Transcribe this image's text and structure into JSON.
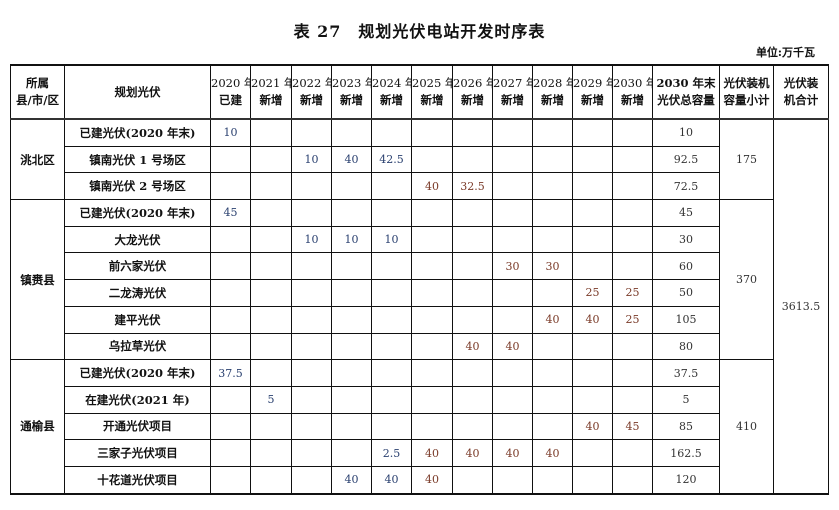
{
  "title": "表 27　规划光伏电站开发时序表",
  "unit": "单位:万千瓦",
  "headers": {
    "county": "所属\n县/市/区",
    "project": "规划光伏",
    "years": [
      [
        "2020 年",
        "已建"
      ],
      [
        "2021 年",
        "新增"
      ],
      [
        "2022 年",
        "新增"
      ],
      [
        "2023 年",
        "新增"
      ],
      [
        "2024 年",
        "新增"
      ],
      [
        "2025 年",
        "新增"
      ],
      [
        "2026 年",
        "新增"
      ],
      [
        "2027 年",
        "新增"
      ],
      [
        "2028 年",
        "新增"
      ],
      [
        "2029 年",
        "新增"
      ],
      [
        "2030 年",
        "新增"
      ]
    ],
    "total": [
      "2030 年末",
      "光伏总容量"
    ],
    "subtotal": [
      "光伏装机",
      "容量小计"
    ],
    "grand": [
      "光伏装",
      "机合计"
    ]
  },
  "colors": {
    "early": "#2b4170",
    "late": "#7a3a28",
    "total": "#333333"
  },
  "grand_total": "3613.5",
  "groups": [
    {
      "name": "洮北区",
      "subtotal": "175",
      "rows": [
        {
          "name": "已建光伏(2020 年末)",
          "values": [
            "10",
            "",
            "",
            "",
            "",
            "",
            "",
            "",
            "",
            "",
            ""
          ],
          "total": "10"
        },
        {
          "name": "镇南光伏 1 号场区",
          "values": [
            "",
            "",
            "10",
            "40",
            "42.5",
            "",
            "",
            "",
            "",
            "",
            ""
          ],
          "total": "92.5"
        },
        {
          "name": "镇南光伏 2 号场区",
          "values": [
            "",
            "",
            "",
            "",
            "",
            "40",
            "32.5",
            "",
            "",
            "",
            ""
          ],
          "total": "72.5"
        }
      ]
    },
    {
      "name": "镇赉县",
      "subtotal": "370",
      "rows": [
        {
          "name": "已建光伏(2020 年末)",
          "values": [
            "45",
            "",
            "",
            "",
            "",
            "",
            "",
            "",
            "",
            "",
            ""
          ],
          "total": "45"
        },
        {
          "name": "大龙光伏",
          "values": [
            "",
            "",
            "10",
            "10",
            "10",
            "",
            "",
            "",
            "",
            "",
            ""
          ],
          "total": "30"
        },
        {
          "name": "前六家光伏",
          "values": [
            "",
            "",
            "",
            "",
            "",
            "",
            "",
            "30",
            "30",
            "",
            ""
          ],
          "total": "60"
        },
        {
          "name": "二龙涛光伏",
          "values": [
            "",
            "",
            "",
            "",
            "",
            "",
            "",
            "",
            "",
            "25",
            "25"
          ],
          "total": "50"
        },
        {
          "name": "建平光伏",
          "values": [
            "",
            "",
            "",
            "",
            "",
            "",
            "",
            "",
            "40",
            "40",
            "25"
          ],
          "total": "105"
        },
        {
          "name": "乌拉草光伏",
          "values": [
            "",
            "",
            "",
            "",
            "",
            "",
            "40",
            "40",
            "",
            "",
            ""
          ],
          "total": "80"
        }
      ]
    },
    {
      "name": "通榆县",
      "subtotal": "410",
      "rows": [
        {
          "name": "已建光伏(2020 年末)",
          "values": [
            "37.5",
            "",
            "",
            "",
            "",
            "",
            "",
            "",
            "",
            "",
            ""
          ],
          "total": "37.5"
        },
        {
          "name": "在建光伏(2021 年)",
          "values": [
            "",
            "5",
            "",
            "",
            "",
            "",
            "",
            "",
            "",
            "",
            ""
          ],
          "total": "5"
        },
        {
          "name": "开通光伏项目",
          "values": [
            "",
            "",
            "",
            "",
            "",
            "",
            "",
            "",
            "",
            "40",
            "45"
          ],
          "total": "85"
        },
        {
          "name": "三家子光伏项目",
          "values": [
            "",
            "",
            "",
            "",
            "2.5",
            "40",
            "40",
            "40",
            "40",
            "",
            ""
          ],
          "total": "162.5"
        },
        {
          "name": "十花道光伏项目",
          "values": [
            "",
            "",
            "",
            "40",
            "40",
            "40",
            "",
            "",
            "",
            "",
            ""
          ],
          "total": "120"
        }
      ]
    }
  ]
}
